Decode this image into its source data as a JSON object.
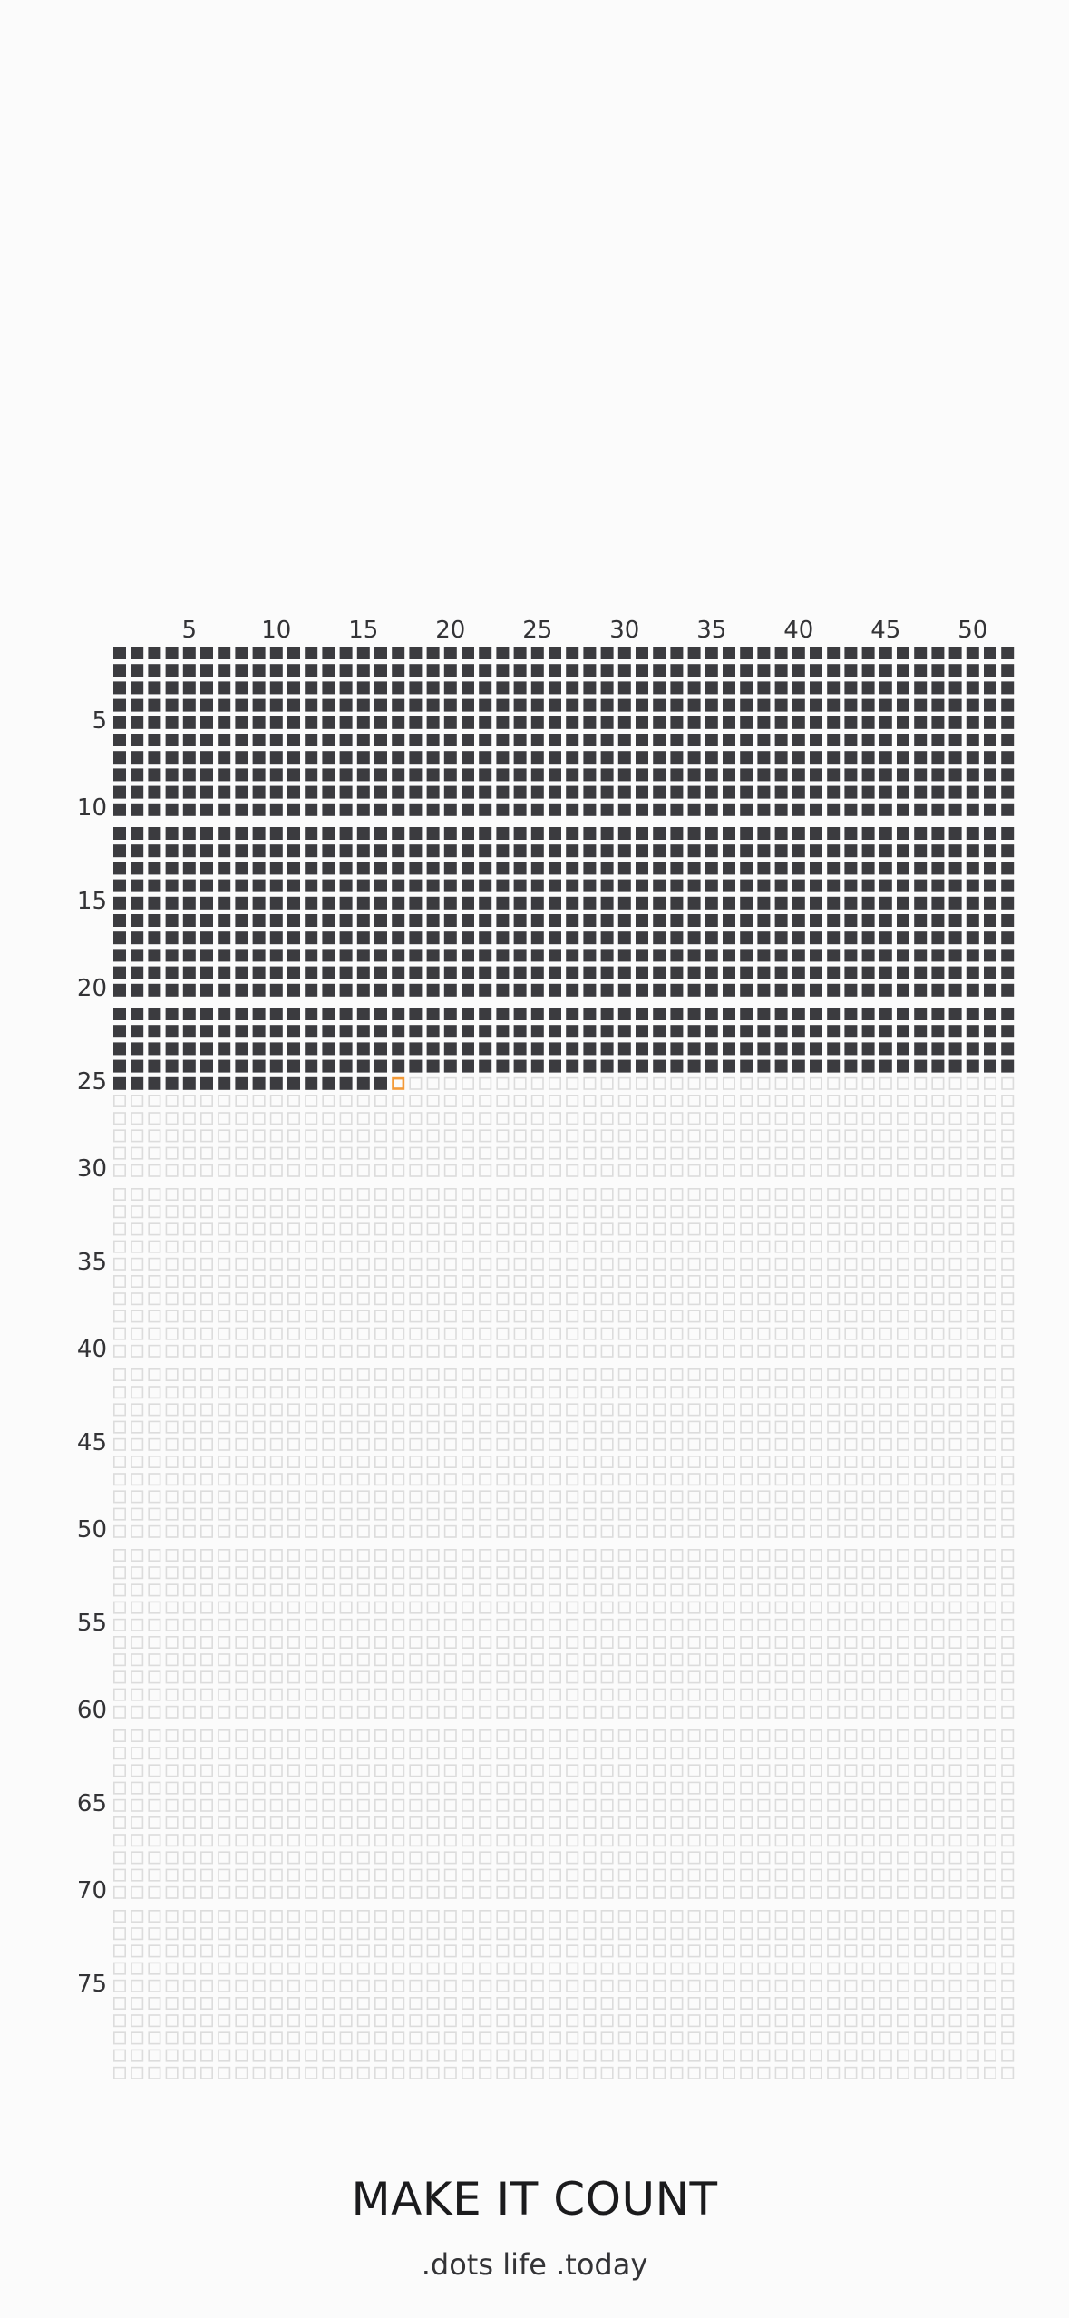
{
  "grid": {
    "columns": 52,
    "rows": 80,
    "weeks_lived": 1264,
    "current_week": {
      "row": 25,
      "column": 17
    },
    "column_labels": [
      "5",
      "10",
      "15",
      "20",
      "25",
      "30",
      "35",
      "40",
      "45",
      "50"
    ],
    "row_labels": [
      "5",
      "10",
      "15",
      "20",
      "25",
      "30",
      "35",
      "40",
      "45",
      "50",
      "55",
      "60",
      "65",
      "70",
      "75"
    ],
    "colors": {
      "lived": "#3b3b3f",
      "future": "#dcdcdc",
      "current": "#f39a38",
      "background": "#fbfbfb"
    }
  },
  "footer": {
    "tagline": "MAKE IT COUNT",
    "brand": ".dots life .today"
  }
}
